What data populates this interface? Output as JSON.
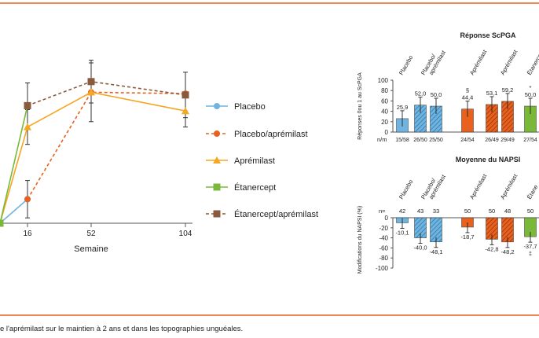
{
  "colors": {
    "frame": "#e8611f",
    "placebo": "#6fb4e0",
    "placebo_apremilast": "#e8611f",
    "apremilast": "#f5a623",
    "etanercept": "#7ab83a",
    "etanercept_apremilast": "#8a5a3c",
    "axis": "#555555"
  },
  "caption": "e l'aprémilast sur le maintien à 2 ans et dans les topographies unguéales.",
  "chart_data": [
    {
      "type": "line",
      "xlabel": "Semaine",
      "x": [
        0,
        16,
        52,
        104
      ],
      "x_tick_labels": [
        "16",
        "52",
        "104"
      ],
      "series": [
        {
          "name": "Placebo",
          "key": "placebo",
          "marker": "circle",
          "dashed": false,
          "values": [
            0,
            18,
            null,
            null
          ]
        },
        {
          "name": "Placebo/aprémilast",
          "key": "placebo_apremilast",
          "marker": "circle",
          "dashed": true,
          "values": [
            null,
            18,
            98,
            97
          ]
        },
        {
          "name": "Aprémilast",
          "key": "apremilast",
          "marker": "triangle",
          "dashed": false,
          "values": [
            0,
            72,
            98,
            84
          ]
        },
        {
          "name": "Étanercept",
          "key": "etanercept",
          "marker": "square",
          "dashed": false,
          "values": [
            0,
            88,
            null,
            null
          ]
        },
        {
          "name": "Étanercept/aprémilast",
          "key": "etanercept_apremilast",
          "marker": "square",
          "dashed": true,
          "values": [
            null,
            88,
            106,
            96
          ]
        }
      ],
      "legend": "right"
    },
    {
      "type": "bar",
      "title": "Réponse ScPGA",
      "ylabel": "Réponses 0ou 1 au ScPGA",
      "ylim": [
        0,
        100
      ],
      "yticks": [
        0,
        20,
        40,
        60,
        80,
        100
      ],
      "group_labels": [
        "Placebo",
        "Placebo/\naprémilast",
        "Aprémilast",
        "Aprémilast",
        "Étanercept"
      ],
      "footer_label": "n/m",
      "bars": [
        {
          "key": "placebo",
          "hatched": false,
          "value": 25.9,
          "label": "25,9",
          "nm": "15/58"
        },
        {
          "key": "placebo",
          "hatched": true,
          "value": 52.0,
          "label": "52,0",
          "nm": "26/50"
        },
        {
          "key": "placebo",
          "hatched": true,
          "value": 50.0,
          "label": "50,0",
          "nm": "25/50"
        },
        {
          "key": "placebo_apremilast",
          "hatched": false,
          "value": 44.4,
          "label": "44,4",
          "nm": "24/54",
          "mark": "§"
        },
        {
          "key": "placebo_apremilast",
          "hatched": true,
          "value": 53.1,
          "label": "53,1",
          "nm": "26/49"
        },
        {
          "key": "placebo_apremilast",
          "hatched": true,
          "value": 59.2,
          "label": "59,2",
          "nm": "29/49"
        },
        {
          "key": "etanercept",
          "hatched": false,
          "value": 50.0,
          "label": "50,0",
          "nm": "27/54",
          "mark": "*"
        }
      ]
    },
    {
      "type": "bar",
      "title": "Moyenne du NAPSI",
      "ylabel": "Modifications du NAPSI (%)",
      "ylim": [
        -100,
        0
      ],
      "yticks": [
        0,
        -20,
        -40,
        -60,
        -80,
        -100
      ],
      "group_labels": [
        "Placebo",
        "Placebo/\naprémilast",
        "Aprémilast",
        "Aprémilast",
        "Étane"
      ],
      "footer_label": "n=",
      "bars": [
        {
          "key": "placebo",
          "hatched": false,
          "value": -10.1,
          "label": "-10,1",
          "n": "42"
        },
        {
          "key": "placebo",
          "hatched": true,
          "value": -40.0,
          "label": "-40,0",
          "n": "43"
        },
        {
          "key": "placebo",
          "hatched": true,
          "value": -48.1,
          "label": "-48,1",
          "n": "33"
        },
        {
          "key": "placebo_apremilast",
          "hatched": false,
          "value": -18.7,
          "label": "-18,7",
          "n": "50"
        },
        {
          "key": "placebo_apremilast",
          "hatched": true,
          "value": -42.8,
          "label": "-42,8",
          "n": "50"
        },
        {
          "key": "placebo_apremilast",
          "hatched": true,
          "value": -48.2,
          "label": "-48,2",
          "n": "48"
        },
        {
          "key": "etanercept",
          "hatched": false,
          "value": -37.7,
          "label": "-37,7",
          "n": "50",
          "mark": "‡"
        }
      ]
    }
  ]
}
